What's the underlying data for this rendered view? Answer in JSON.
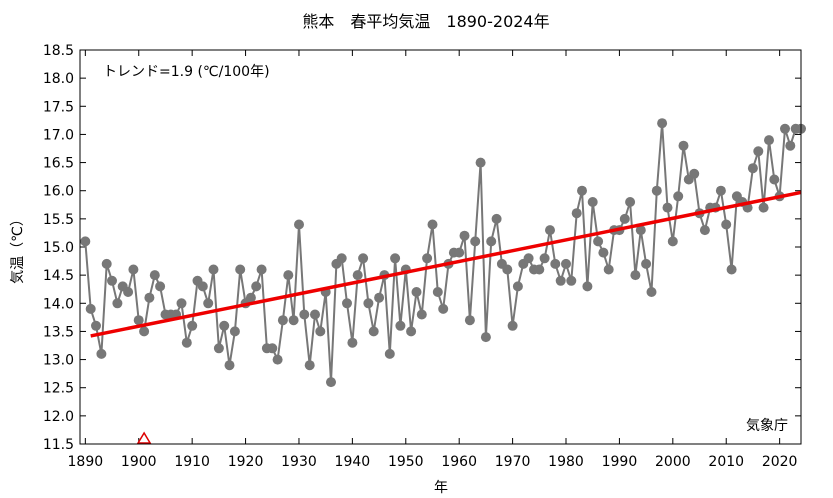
{
  "chart_data": {
    "type": "line",
    "title": "熊本　春平均気温　1890-2024年",
    "xlabel": "年",
    "ylabel": "気温（℃）",
    "xlim": [
      1889,
      2024
    ],
    "ylim": [
      11.5,
      18.5
    ],
    "x_ticks": [
      "1890",
      "1900",
      "1910",
      "1920",
      "1930",
      "1940",
      "1950",
      "1960",
      "1970",
      "1980",
      "1990",
      "2000",
      "2010",
      "2020"
    ],
    "y_ticks": [
      "11.5",
      "12.0",
      "12.5",
      "13.0",
      "13.5",
      "14.0",
      "14.5",
      "15.0",
      "15.5",
      "16.0",
      "16.5",
      "17.0",
      "17.5",
      "18.0",
      "18.5"
    ],
    "trend_label": "トレンド=1.9 (℃/100年)",
    "source_label": "気象庁",
    "series": [
      {
        "color": "#777777",
        "x": [
          1890,
          1891,
          1892,
          1893,
          1894,
          1895,
          1896,
          1897,
          1898,
          1899,
          1900,
          1901,
          1902,
          1903,
          1904,
          1905,
          1906,
          1907,
          1908,
          1909,
          1910,
          1911,
          1912,
          1913,
          1914,
          1915,
          1916,
          1917,
          1918,
          1919,
          1920,
          1921,
          1922,
          1923,
          1924,
          1925,
          1926,
          1927,
          1928,
          1929,
          1930,
          1931,
          1932,
          1933,
          1934,
          1935,
          1936,
          1937,
          1938,
          1939,
          1940,
          1941,
          1942,
          1943,
          1944,
          1945,
          1946,
          1947,
          1948,
          1949,
          1950,
          1951,
          1952,
          1953,
          1954,
          1955,
          1956,
          1957,
          1958,
          1959,
          1960,
          1961,
          1962,
          1963,
          1964,
          1965,
          1966,
          1967,
          1968,
          1969,
          1970,
          1971,
          1972,
          1973,
          1974,
          1975,
          1976,
          1977,
          1978,
          1979,
          1980,
          1981,
          1982,
          1983,
          1984,
          1985,
          1986,
          1987,
          1988,
          1989,
          1990,
          1991,
          1992,
          1993,
          1994,
          1995,
          1996,
          1997,
          1998,
          1999,
          2000,
          2001,
          2002,
          2003,
          2004,
          2005,
          2006,
          2007,
          2008,
          2009,
          2010,
          2011,
          2012,
          2013,
          2014,
          2015,
          2016,
          2017,
          2018,
          2019,
          2020,
          2021,
          2022,
          2023,
          2024
        ],
        "values": [
          15.1,
          13.9,
          13.6,
          13.1,
          14.7,
          14.4,
          14.0,
          14.3,
          14.2,
          14.6,
          13.7,
          13.5,
          14.1,
          14.5,
          14.3,
          13.8,
          13.8,
          13.8,
          14.0,
          13.3,
          13.6,
          14.4,
          14.3,
          14.0,
          14.6,
          13.2,
          13.6,
          12.9,
          13.5,
          14.6,
          14.0,
          14.1,
          14.3,
          14.6,
          13.2,
          13.2,
          13.0,
          13.7,
          14.5,
          13.7,
          15.4,
          13.8,
          12.9,
          13.8,
          13.5,
          14.2,
          12.6,
          14.7,
          14.8,
          14.0,
          13.3,
          14.5,
          14.8,
          14.0,
          13.5,
          14.1,
          14.5,
          13.1,
          14.8,
          13.6,
          14.6,
          13.5,
          14.2,
          13.8,
          14.8,
          15.4,
          14.2,
          13.9,
          14.7,
          14.9,
          14.9,
          15.2,
          13.7,
          15.1,
          16.5,
          13.4,
          15.1,
          15.5,
          14.7,
          14.6,
          13.6,
          14.3,
          14.7,
          14.8,
          14.6,
          14.6,
          14.8,
          15.3,
          14.7,
          14.4,
          14.7,
          14.4,
          15.6,
          16.0,
          14.3,
          15.8,
          15.1,
          14.9,
          14.6,
          15.3,
          15.3,
          15.5,
          15.8,
          14.5,
          15.3,
          14.7,
          14.2,
          16.0,
          17.2,
          15.7,
          15.1,
          15.9,
          16.8,
          16.2,
          16.3,
          15.6,
          15.3,
          15.7,
          15.7,
          16.0,
          15.4,
          14.6,
          15.9,
          15.8,
          15.7,
          16.4,
          16.7,
          15.7,
          16.9,
          16.2,
          15.9,
          17.1,
          16.8,
          17.1,
          17.1
        ]
      },
      {
        "name": "トレンド",
        "color": "#ee0000",
        "x": [
          1891,
          2024
        ],
        "values": [
          13.42,
          15.97
        ]
      }
    ],
    "markers": [
      {
        "x": 1901,
        "y": 11.5,
        "shape": "triangle",
        "color": "#dd0000"
      }
    ]
  }
}
